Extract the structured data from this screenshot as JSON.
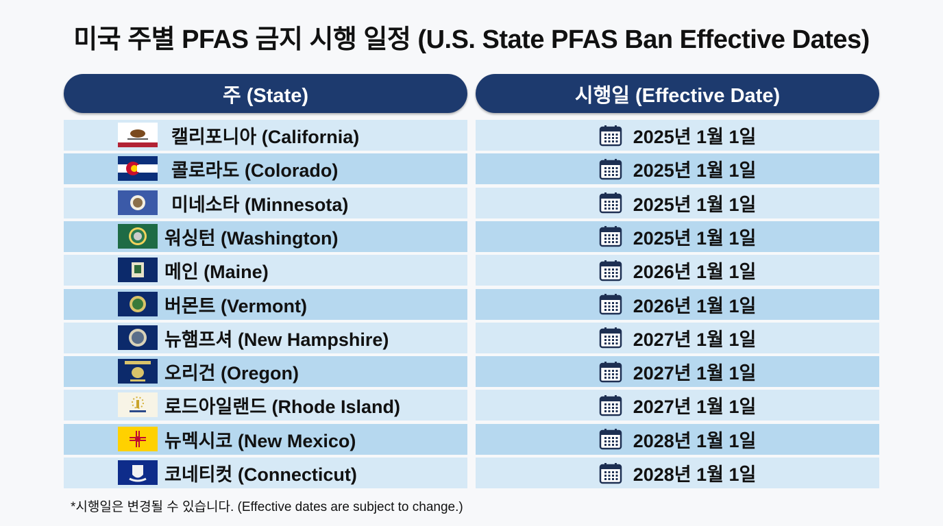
{
  "title": "미국 주별 PFAS 금지 시행 일정 (U.S. State PFAS Ban Effective Dates)",
  "headers": {
    "state": "주 (State)",
    "date": "시행일 (Effective Date)"
  },
  "colors": {
    "header": "#1d3a6e",
    "row_light": "#d6e9f6",
    "row_dark": "#b6d8ef"
  },
  "rows": [
    {
      "state": "캘리포니아 (California)",
      "date": "2025년 1월 1일",
      "flag": "california-flag-icon"
    },
    {
      "state": "콜로라도 (Colorado)",
      "date": "2025년 1월 1일",
      "flag": "colorado-flag-icon"
    },
    {
      "state": "미네소타 (Minnesota)",
      "date": "2025년 1월 1일",
      "flag": "minnesota-flag-icon"
    },
    {
      "state": "워싱턴 (Washington)",
      "date": "2025년 1월 1일",
      "flag": "washington-flag-icon"
    },
    {
      "state": "메인 (Maine)",
      "date": "2026년 1월 1일",
      "flag": "maine-flag-icon"
    },
    {
      "state": "버몬트 (Vermont)",
      "date": "2026년 1월 1일",
      "flag": "vermont-flag-icon"
    },
    {
      "state": "뉴햄프셔 (New Hampshire)",
      "date": "2027년 1월 1일",
      "flag": "new-hampshire-flag-icon"
    },
    {
      "state": "오리건 (Oregon)",
      "date": "2027년 1월 1일",
      "flag": "oregon-flag-icon"
    },
    {
      "state": "로드아일랜드 (Rhode Island)",
      "date": "2027년 1월 1일",
      "flag": "rhode-island-flag-icon"
    },
    {
      "state": "뉴멕시코 (New Mexico)",
      "date": "2028년 1월 1일",
      "flag": "new-mexico-flag-icon"
    },
    {
      "state": "코네티컷 (Connecticut)",
      "date": "2028년 1월 1일",
      "flag": "connecticut-flag-icon"
    }
  ],
  "footnote": "*시행일은 변경될 수 있습니다. (Effective dates are subject to change.)"
}
